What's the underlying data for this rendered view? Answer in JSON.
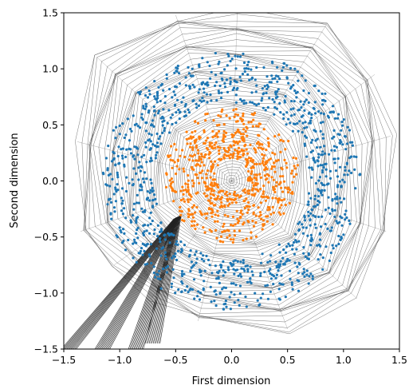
{
  "chart_data": {
    "type": "scatter",
    "title": "",
    "xlabel": "First dimension",
    "ylabel": "Second dimension",
    "xlim": [
      -1.5,
      1.5
    ],
    "ylim": [
      -1.5,
      1.5
    ],
    "xticks": [
      -1.5,
      -1.0,
      -0.5,
      0.0,
      0.5,
      1.0,
      1.5
    ],
    "yticks": [
      -1.5,
      -1.0,
      -0.5,
      0.0,
      0.5,
      1.0,
      1.5
    ],
    "xtick_labels": [
      "−1.5",
      "−1.0",
      "−0.5",
      "0.0",
      "0.5",
      "1.0",
      "1.5"
    ],
    "ytick_labels": [
      "−1.5",
      "−1.0",
      "−0.5",
      "0.0",
      "0.5",
      "1.0",
      "1.5"
    ],
    "grid": false,
    "legend": "none",
    "background_curves": {
      "color": "#555555",
      "description_values": {
        "center": [
          0.0,
          0.0
        ],
        "outer_boundary": [
          [
            -1.35,
            -0.45
          ],
          [
            -1.38,
            0.35
          ],
          [
            -1.2,
            1.1
          ],
          [
            -0.5,
            1.48
          ],
          [
            0.05,
            1.5
          ],
          [
            0.85,
            1.4
          ],
          [
            1.28,
            0.95
          ],
          [
            1.42,
            0.4
          ],
          [
            1.38,
            -0.45
          ],
          [
            1.12,
            -1.05
          ],
          [
            0.5,
            -1.32
          ],
          [
            -0.3,
            -1.25
          ],
          [
            -0.72,
            -1.05
          ],
          [
            -1.05,
            -0.75
          ]
        ],
        "tail_lines_end": [
          [
            -1.45,
            -1.5
          ],
          [
            -1.15,
            -1.5
          ],
          [
            -0.85,
            -1.5
          ],
          [
            -0.7,
            -1.45
          ]
        ],
        "tail_start": [
          -0.48,
          -0.32
        ]
      }
    },
    "series": [
      {
        "color": "#1f77b4",
        "shape": "annulus",
        "center": [
          0.0,
          0.0
        ],
        "inner_radius": 0.7,
        "outer_radius": 1.15,
        "point_count": 1100,
        "seed": 7
      },
      {
        "color": "#ff7f0e",
        "shape": "annulus",
        "center": [
          0.0,
          0.05
        ],
        "inner_radius": 0.15,
        "outer_radius": 0.6,
        "point_count": 700,
        "seed": 13
      }
    ]
  }
}
